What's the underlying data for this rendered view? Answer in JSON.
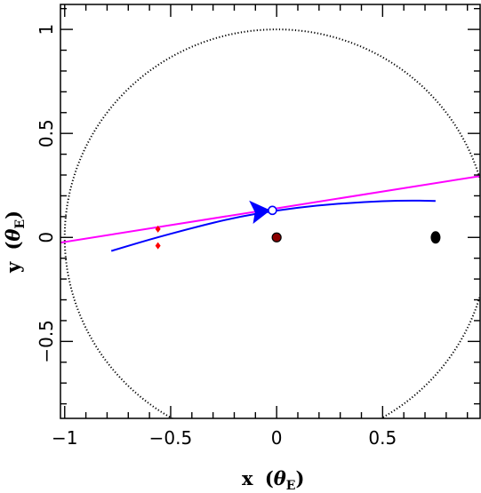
{
  "chart_data": {
    "type": "line",
    "title": "",
    "xlabel": {
      "main": "x",
      "theta": "θ",
      "sub": "E"
    },
    "ylabel": {
      "main": "y",
      "theta": "θ",
      "sub": "E"
    },
    "xlim": [
      -1.02,
      0.96
    ],
    "ylim": [
      -0.87,
      1.12
    ],
    "xticks": [
      -1,
      -0.5,
      0,
      0.5
    ],
    "xtick_labels": [
      "−1",
      "−0.5",
      "0",
      "0.5"
    ],
    "yticks": [
      -0.5,
      0,
      0.5,
      1
    ],
    "ytick_labels": [
      "−0.5",
      "0",
      "0.5",
      "1"
    ],
    "grid": false,
    "einstein_ring": {
      "radius": 1,
      "center": [
        0,
        0
      ],
      "style": "dotted",
      "color": "#000000"
    },
    "source_trajectory": {
      "color": "#ff00ff",
      "points": [
        [
          -1.02,
          -0.025
        ],
        [
          0.96,
          0.295
        ]
      ]
    },
    "planet_trajectory": {
      "color": "#0000ff",
      "points": [
        [
          -0.78,
          -0.065
        ],
        [
          -0.6,
          -0.01
        ],
        [
          -0.4,
          0.045
        ],
        [
          -0.2,
          0.095
        ],
        [
          0.0,
          0.13
        ],
        [
          0.2,
          0.155
        ],
        [
          0.4,
          0.17
        ],
        [
          0.6,
          0.178
        ],
        [
          0.75,
          0.175
        ]
      ],
      "arrow_at": [
        -0.05,
        0.13
      ],
      "marker": [
        -0.02,
        0.13
      ]
    },
    "lenses": [
      {
        "x": 0,
        "y": 0,
        "color": "#8b0000",
        "size": "small"
      },
      {
        "x": 0.75,
        "y": 0,
        "color": "#000000",
        "size": "large"
      }
    ],
    "caustics": {
      "color": "#ff0000",
      "points": [
        [
          -0.56,
          0.04
        ],
        [
          -0.56,
          -0.04
        ]
      ]
    }
  }
}
